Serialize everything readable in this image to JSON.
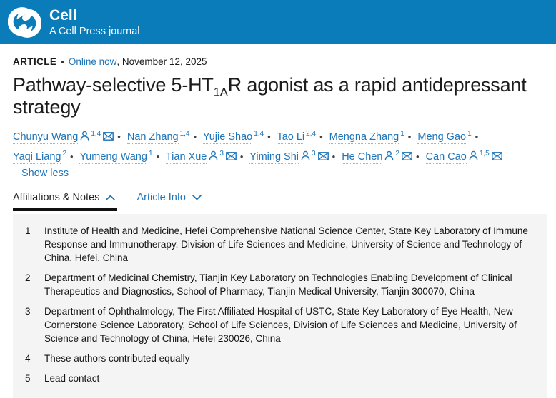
{
  "header": {
    "journal": "Cell",
    "tagline": "A Cell Press journal"
  },
  "meta": {
    "article_type": "ARTICLE",
    "separator": "•",
    "online_link": "Online now",
    "date_suffix": ", November 12, 2025"
  },
  "title": {
    "pre": "Pathway-selective 5-HT",
    "sub": "1A",
    "post": "R agonist as a rapid antidepressant strategy"
  },
  "authors": [
    {
      "name": "Chunyu Wang",
      "person": true,
      "sup": "1,4",
      "envelope": true
    },
    {
      "name": "Nan Zhang",
      "person": false,
      "sup": "1,4",
      "envelope": false
    },
    {
      "name": "Yujie Shao",
      "person": false,
      "sup": "1,4",
      "envelope": false
    },
    {
      "name": "Tao Li",
      "person": false,
      "sup": "2,4",
      "envelope": false
    },
    {
      "name": "Mengna Zhang",
      "person": false,
      "sup": "1",
      "envelope": false
    },
    {
      "name": "Meng Gao",
      "person": false,
      "sup": "1",
      "envelope": false
    },
    {
      "name": "Yaqi Liang",
      "person": false,
      "sup": "2",
      "envelope": false
    },
    {
      "name": "Yumeng Wang",
      "person": false,
      "sup": "1",
      "envelope": false
    },
    {
      "name": "Tian Xue",
      "person": true,
      "sup": "3",
      "envelope": true
    },
    {
      "name": "Yiming Shi",
      "person": true,
      "sup": "3",
      "envelope": true
    },
    {
      "name": "He Chen",
      "person": true,
      "sup": "2",
      "envelope": true
    },
    {
      "name": "Can Cao",
      "person": true,
      "sup": "1,5",
      "envelope": true
    }
  ],
  "show_less_label": "Show less",
  "tabs": [
    {
      "label": "Affiliations & Notes",
      "active": true
    },
    {
      "label": "Article Info",
      "active": false
    }
  ],
  "affiliations": [
    {
      "num": "1",
      "text": "Institute of Health and Medicine, Hefei Comprehensive National Science Center, State Key Laboratory of Immune Response and Immunotherapy, Division of Life Sciences and Medicine, University of Science and Technology of China, Hefei, China"
    },
    {
      "num": "2",
      "text": "Department of Medicinal Chemistry, Tianjin Key Laboratory on Technologies Enabling Development of Clinical Therapeutics and Diagnostics, School of Pharmacy, Tianjin Medical University, Tianjin 300070, China"
    },
    {
      "num": "3",
      "text": "Department of Ophthalmology, The First Affiliated Hospital of USTC, State Key Laboratory of Eye Health, New Cornerstone Science Laboratory, School of Life Sciences, Division of Life Sciences and Medicine, University of Science and Technology of China, Hefei 230026, China"
    },
    {
      "num": "4",
      "text": "These authors contributed equally"
    },
    {
      "num": "5",
      "text": "Lead contact"
    }
  ],
  "icons": {
    "logo": "cellpress-logo",
    "person": "person-icon",
    "envelope": "envelope-icon",
    "chevron_up": "chevron-up-icon",
    "chevron_down": "chevron-down-icon"
  },
  "colors": {
    "header_bg": "#0b7cba",
    "link_blue": "#1d74b9",
    "text": "#1a1a1a",
    "panel_bg": "#f4f4f4",
    "active_tab_underline": "#101010"
  }
}
